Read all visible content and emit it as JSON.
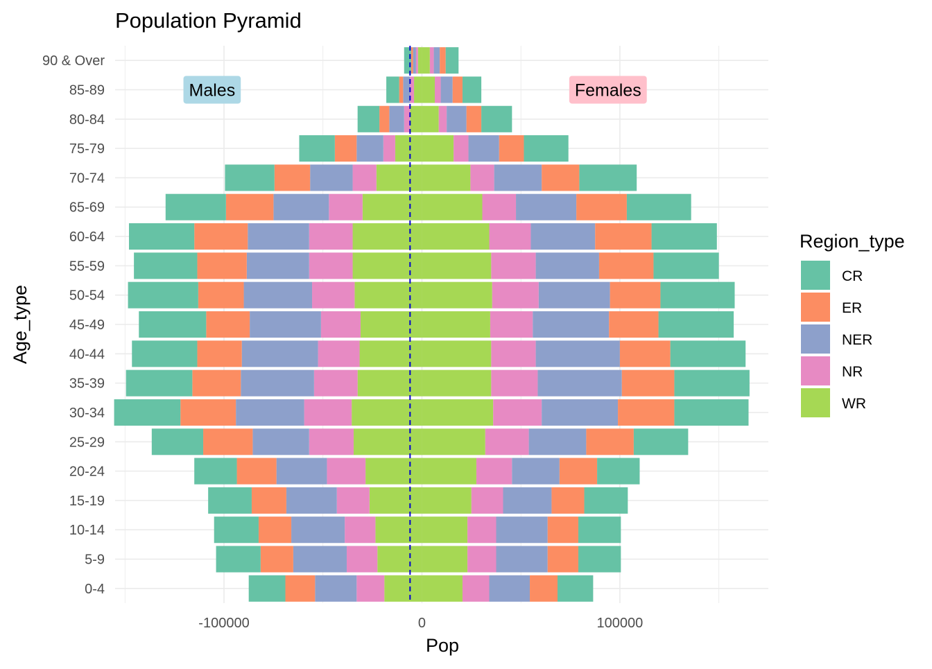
{
  "chart_data": {
    "type": "bar",
    "orientation": "horizontal",
    "stacked": true,
    "title": "Population Pyramid",
    "xlabel": "Pop",
    "ylabel": "Age_type",
    "xlim": [
      -155000,
      175000
    ],
    "x_ticks": [
      -100000,
      0,
      100000
    ],
    "x_tick_labels": [
      "-100000",
      "0",
      "100000"
    ],
    "zero_line": {
      "value": -6000,
      "color": "#0000CD",
      "style": "dashed"
    },
    "grid": true,
    "legend": {
      "title": "Region_type",
      "position": "right"
    },
    "annotations": [
      {
        "text": "Males",
        "x": -106000,
        "category": "85-89",
        "fill": "#ADD8E6"
      },
      {
        "text": "Females",
        "x": 94000,
        "category": "85-89",
        "fill": "#FFC0CB"
      }
    ],
    "categories": [
      "0-4",
      "5-9",
      "10-14",
      "15-19",
      "20-24",
      "25-29",
      "30-34",
      "35-39",
      "40-44",
      "45-49",
      "50-54",
      "55-59",
      "60-64",
      "65-69",
      "70-74",
      "75-79",
      "80-84",
      "85-89",
      "90 & Over"
    ],
    "stack_order_from_center": [
      "WR",
      "NR",
      "NER",
      "ER",
      "CR"
    ],
    "series": [
      {
        "name": "CR",
        "color": "#66C2A5",
        "male": [
          -18500,
          -22500,
          -22500,
          -22000,
          -21500,
          -26000,
          -33500,
          -33500,
          -33000,
          -34000,
          -35500,
          -32000,
          -33000,
          -30500,
          -25000,
          -18000,
          -11000,
          -6500,
          -3500
        ],
        "female": [
          18000,
          21500,
          21500,
          22000,
          21500,
          27500,
          37500,
          38000,
          38000,
          38000,
          37500,
          33000,
          33000,
          32500,
          29000,
          22500,
          15500,
          9500,
          6500
        ]
      },
      {
        "name": "ER",
        "color": "#FC8D62",
        "male": [
          -15000,
          -16500,
          -16500,
          -17500,
          -20000,
          -25000,
          -28000,
          -24500,
          -22500,
          -22000,
          -23000,
          -25000,
          -27000,
          -24000,
          -18000,
          -11000,
          -5000,
          -2000,
          -1000
        ],
        "female": [
          14000,
          15500,
          15500,
          16500,
          19000,
          24000,
          28500,
          26500,
          25500,
          25000,
          25500,
          27500,
          28500,
          25500,
          19000,
          12500,
          7500,
          5000,
          3000
        ]
      },
      {
        "name": "NER",
        "color": "#8DA0CB",
        "male": [
          -21000,
          -27000,
          -27000,
          -25500,
          -25500,
          -28500,
          -34500,
          -37000,
          -38500,
          -36000,
          -34500,
          -31500,
          -31000,
          -28000,
          -21500,
          -13500,
          -7500,
          -3500,
          -1500
        ],
        "female": [
          20500,
          26000,
          26000,
          24500,
          24000,
          29000,
          38500,
          42500,
          42500,
          38500,
          36000,
          32000,
          32500,
          30500,
          24000,
          15500,
          10000,
          6000,
          3000
        ]
      },
      {
        "name": "NR",
        "color": "#E78AC3",
        "male": [
          -14000,
          -15500,
          -15500,
          -16500,
          -19500,
          -22500,
          -24000,
          -22000,
          -21000,
          -20000,
          -21500,
          -22000,
          -22000,
          -17000,
          -12000,
          -6000,
          -3000,
          -2000,
          -1000
        ],
        "female": [
          13500,
          14500,
          14500,
          16000,
          18000,
          22000,
          24500,
          23500,
          22500,
          21500,
          23500,
          22500,
          21000,
          17000,
          12000,
          7500,
          4000,
          3000,
          2000
        ]
      },
      {
        "name": "WR",
        "color": "#A6D854",
        "male": [
          -19000,
          -22500,
          -23500,
          -26500,
          -28500,
          -34500,
          -35500,
          -32500,
          -31500,
          -31000,
          -34000,
          -35000,
          -35000,
          -30000,
          -23000,
          -13500,
          -6000,
          -4000,
          -2000
        ],
        "female": [
          20500,
          23000,
          23000,
          25000,
          27500,
          32000,
          36000,
          35000,
          35000,
          34500,
          35500,
          35000,
          34000,
          30500,
          24500,
          16000,
          8500,
          6500,
          4000
        ]
      }
    ]
  }
}
